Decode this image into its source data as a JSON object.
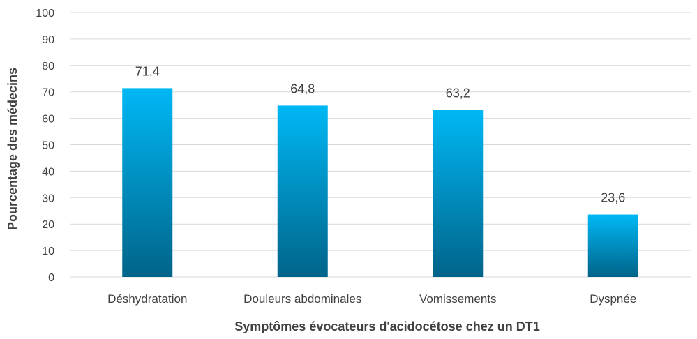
{
  "chart_data": {
    "type": "bar",
    "categories": [
      "Déshydratation",
      "Douleurs abdominales",
      "Vomissements",
      "Dyspnée"
    ],
    "values": [
      71.4,
      64.8,
      63.2,
      23.6
    ],
    "value_labels": [
      "71,4",
      "64,8",
      "63,2",
      "23,6"
    ],
    "xlabel": "Symptômes évocateurs d'acidocétose chez un DT1",
    "ylabel": "Pourcentage des médecins",
    "ylim": [
      0,
      100
    ],
    "yticks": [
      0,
      10,
      20,
      30,
      40,
      50,
      60,
      70,
      80,
      90,
      100
    ],
    "grid": true,
    "legend": "none",
    "colors": {
      "bar_top": "#00b8f5",
      "bar_bottom": "#006489",
      "grid": "#d9d9d9",
      "text": "#404040"
    }
  }
}
